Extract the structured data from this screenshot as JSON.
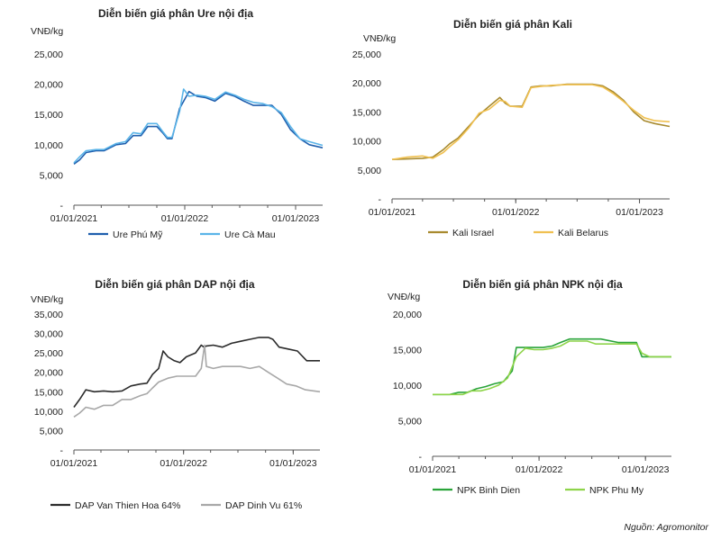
{
  "source": "Nguồn: Agromonitor",
  "chart_data": [
    {
      "type": "line",
      "title": "Diễn biến giá phân Ure nội địa",
      "ylabel": "VNĐ/kg",
      "ylim": [
        0,
        25000
      ],
      "yticks": [
        0,
        5000,
        10000,
        15000,
        20000,
        25000
      ],
      "ytick_labels": [
        "-",
        "5,000",
        "10,000",
        "15,000",
        "20,000",
        "25,000"
      ],
      "xlim": [
        "2021-01-01",
        "2023-03-31"
      ],
      "xticks": [
        "2021-01-01",
        "2022-01-01",
        "2023-01-01"
      ],
      "xtick_labels": [
        "01/01/2021",
        "01/01/2022",
        "01/01/2023"
      ],
      "legend": "bottom",
      "grid": false,
      "series": [
        {
          "name": "Ure Phú Mỹ",
          "color": "#1f5fae",
          "x": [
            "2021-01-01",
            "2021-01-20",
            "2021-02-10",
            "2021-03-15",
            "2021-04-10",
            "2021-05-20",
            "2021-06-20",
            "2021-07-15",
            "2021-08-10",
            "2021-09-01",
            "2021-10-01",
            "2021-10-20",
            "2021-11-05",
            "2021-11-20",
            "2021-12-15",
            "2022-01-15",
            "2022-02-10",
            "2022-03-10",
            "2022-04-10",
            "2022-05-15",
            "2022-06-15",
            "2022-07-15",
            "2022-08-15",
            "2022-09-15",
            "2022-10-15",
            "2022-11-15",
            "2022-12-15",
            "2023-01-15",
            "2023-02-15",
            "2023-03-31"
          ],
          "y": [
            6800,
            7500,
            8700,
            9000,
            9000,
            10000,
            10200,
            11500,
            11500,
            13000,
            13000,
            12000,
            11000,
            11000,
            16000,
            18800,
            18000,
            17800,
            17200,
            18500,
            18000,
            17200,
            16500,
            16500,
            16500,
            15000,
            12500,
            11000,
            10000,
            9500
          ]
        },
        {
          "name": "Ure Cà Mau",
          "color": "#5ab4e8",
          "x": [
            "2021-01-01",
            "2021-01-20",
            "2021-02-10",
            "2021-03-15",
            "2021-04-10",
            "2021-05-20",
            "2021-06-20",
            "2021-07-15",
            "2021-08-10",
            "2021-09-01",
            "2021-10-01",
            "2021-10-20",
            "2021-11-05",
            "2021-11-20",
            "2021-12-15",
            "2021-12-28",
            "2022-01-15",
            "2022-02-10",
            "2022-03-10",
            "2022-04-10",
            "2022-05-15",
            "2022-06-15",
            "2022-07-15",
            "2022-08-15",
            "2022-09-15",
            "2022-10-15",
            "2022-11-15",
            "2022-12-15",
            "2023-01-15",
            "2023-02-15",
            "2023-03-31"
          ],
          "y": [
            7000,
            8000,
            9000,
            9200,
            9200,
            10200,
            10500,
            12000,
            11800,
            13500,
            13500,
            12200,
            11200,
            11200,
            15500,
            19200,
            18000,
            18200,
            18000,
            17500,
            18700,
            18200,
            17500,
            17000,
            16800,
            16300,
            15300,
            13000,
            11000,
            10500,
            9900
          ]
        }
      ]
    },
    {
      "type": "line",
      "title": "Diễn biến giá phân Kali",
      "ylabel": "VNĐ/kg",
      "ylim": [
        0,
        25000
      ],
      "yticks": [
        0,
        5000,
        10000,
        15000,
        20000,
        25000
      ],
      "ytick_labels": [
        "-",
        "5,000",
        "10,000",
        "15,000",
        "20,000",
        "25,000"
      ],
      "xlim": [
        "2021-01-01",
        "2023-03-31"
      ],
      "xticks": [
        "2021-01-01",
        "2022-01-01",
        "2023-01-01"
      ],
      "xtick_labels": [
        "01/01/2021",
        "01/01/2022",
        "01/01/2023"
      ],
      "legend": "bottom",
      "grid": false,
      "series": [
        {
          "name": "Kali Israel",
          "color": "#a88a2e",
          "x": [
            "2021-01-01",
            "2021-02-15",
            "2021-04-01",
            "2021-05-01",
            "2021-06-01",
            "2021-06-20",
            "2021-07-15",
            "2021-08-15",
            "2021-09-15",
            "2021-10-15",
            "2021-11-15",
            "2021-12-01",
            "2021-12-15",
            "2022-01-20",
            "2022-02-15",
            "2022-03-15",
            "2022-04-15",
            "2022-06-01",
            "2022-07-15",
            "2022-08-15",
            "2022-09-15",
            "2022-10-15",
            "2022-11-15",
            "2022-12-15",
            "2023-01-15",
            "2023-02-15",
            "2023-03-31"
          ],
          "y": [
            6800,
            6900,
            7000,
            7200,
            8500,
            9500,
            10500,
            12500,
            14500,
            16000,
            17500,
            16500,
            16000,
            16000,
            19300,
            19500,
            19500,
            19800,
            19800,
            19800,
            19500,
            18500,
            17000,
            15000,
            13500,
            13000,
            12500
          ]
        },
        {
          "name": "Kali Belarus",
          "color": "#f0c050",
          "x": [
            "2021-01-01",
            "2021-02-15",
            "2021-04-01",
            "2021-05-01",
            "2021-06-01",
            "2021-06-20",
            "2021-07-15",
            "2021-08-15",
            "2021-09-15",
            "2021-10-15",
            "2021-11-15",
            "2021-12-01",
            "2021-12-15",
            "2022-01-20",
            "2022-02-15",
            "2022-03-15",
            "2022-04-15",
            "2022-06-01",
            "2022-07-15",
            "2022-08-15",
            "2022-09-15",
            "2022-10-15",
            "2022-11-15",
            "2022-12-15",
            "2023-01-15",
            "2023-02-15",
            "2023-03-31"
          ],
          "y": [
            6800,
            7200,
            7400,
            7000,
            8000,
            9000,
            10200,
            12200,
            14800,
            15500,
            17000,
            16800,
            16000,
            15800,
            19200,
            19400,
            19600,
            19700,
            19700,
            19700,
            19300,
            18200,
            16800,
            15300,
            14000,
            13500,
            13300
          ]
        }
      ]
    },
    {
      "type": "line",
      "title": "Diễn biến giá phân DAP nội địa",
      "ylabel": "VNĐ/kg",
      "ylim": [
        0,
        35000
      ],
      "yticks": [
        0,
        5000,
        10000,
        15000,
        20000,
        25000,
        30000,
        35000
      ],
      "ytick_labels": [
        "-",
        "5,000",
        "10,000",
        "15,000",
        "20,000",
        "25,000",
        "30,000",
        "35,000"
      ],
      "xlim": [
        "2021-01-01",
        "2023-03-31"
      ],
      "xticks": [
        "2021-01-01",
        "2022-01-01",
        "2023-01-01"
      ],
      "xtick_labels": [
        "01/01/2021",
        "01/01/2022",
        "01/01/2023"
      ],
      "legend": "bottom",
      "grid": false,
      "series": [
        {
          "name": "DAP Van Thien Hoa 64%",
          "color": "#2b2b2b",
          "x": [
            "2021-01-01",
            "2021-01-20",
            "2021-02-10",
            "2021-03-10",
            "2021-04-10",
            "2021-05-10",
            "2021-06-10",
            "2021-07-10",
            "2021-08-10",
            "2021-09-01",
            "2021-09-20",
            "2021-10-10",
            "2021-10-25",
            "2021-11-10",
            "2021-12-01",
            "2021-12-20",
            "2022-01-10",
            "2022-02-10",
            "2022-03-01",
            "2022-03-10",
            "2022-03-18",
            "2022-04-10",
            "2022-05-10",
            "2022-06-10",
            "2022-07-10",
            "2022-08-10",
            "2022-09-10",
            "2022-10-10",
            "2022-10-25",
            "2022-11-15",
            "2022-12-15",
            "2023-01-15",
            "2023-02-15",
            "2023-03-31"
          ],
          "y": [
            11000,
            13000,
            15500,
            15000,
            15200,
            15000,
            15200,
            16500,
            17000,
            17200,
            19500,
            21000,
            25500,
            24000,
            23000,
            22500,
            24000,
            25000,
            27000,
            26500,
            26800,
            27000,
            26500,
            27500,
            28000,
            28500,
            29000,
            29000,
            28500,
            26500,
            26000,
            25500,
            23000,
            23000
          ]
        },
        {
          "name": "DAP Dinh Vu 61%",
          "color": "#a8a8a8",
          "x": [
            "2021-01-01",
            "2021-01-20",
            "2021-02-10",
            "2021-03-10",
            "2021-04-10",
            "2021-05-10",
            "2021-06-10",
            "2021-07-10",
            "2021-08-10",
            "2021-09-01",
            "2021-09-20",
            "2021-10-10",
            "2021-11-10",
            "2021-12-10",
            "2022-01-10",
            "2022-02-10",
            "2022-03-01",
            "2022-03-12",
            "2022-03-18",
            "2022-04-10",
            "2022-05-10",
            "2022-06-10",
            "2022-07-10",
            "2022-08-10",
            "2022-09-10",
            "2022-10-10",
            "2022-11-10",
            "2022-12-10",
            "2023-01-10",
            "2023-02-10",
            "2023-03-31"
          ],
          "y": [
            8500,
            9500,
            11000,
            10500,
            11500,
            11500,
            13000,
            13000,
            14000,
            14500,
            16000,
            17500,
            18500,
            19000,
            19000,
            19000,
            21000,
            27000,
            21500,
            21000,
            21500,
            21500,
            21500,
            21000,
            21500,
            20000,
            18500,
            17000,
            16500,
            15500,
            15000
          ]
        }
      ]
    },
    {
      "type": "line",
      "title": "Diễn biến giá phân NPK nội địa",
      "ylabel": "VNĐ/kg",
      "ylim": [
        0,
        20000
      ],
      "yticks": [
        0,
        5000,
        10000,
        15000,
        20000
      ],
      "ytick_labels": [
        "-",
        "5,000",
        "10,000",
        "15,000",
        "20,000"
      ],
      "xlim": [
        "2021-01-01",
        "2023-03-31"
      ],
      "xticks": [
        "2021-01-01",
        "2022-01-01",
        "2023-01-01"
      ],
      "xtick_labels": [
        "01/01/2021",
        "01/01/2022",
        "01/01/2023"
      ],
      "legend": "bottom",
      "grid": false,
      "series": [
        {
          "name": "NPK Binh Dien",
          "color": "#2aa43a",
          "x": [
            "2021-01-01",
            "2021-03-01",
            "2021-04-01",
            "2021-05-01",
            "2021-06-01",
            "2021-07-01",
            "2021-08-01",
            "2021-09-01",
            "2021-10-01",
            "2021-10-15",
            "2021-11-15",
            "2021-12-15",
            "2022-01-15",
            "2022-02-15",
            "2022-03-15",
            "2022-04-15",
            "2022-05-15",
            "2022-06-15",
            "2022-08-01",
            "2022-10-01",
            "2022-12-01",
            "2022-12-20",
            "2023-01-15",
            "2023-03-31"
          ],
          "y": [
            8700,
            8700,
            9000,
            9000,
            9500,
            9800,
            10200,
            10500,
            12000,
            15300,
            15300,
            15300,
            15300,
            15500,
            16000,
            16500,
            16500,
            16500,
            16500,
            16000,
            16000,
            14000,
            14000,
            14000
          ]
        },
        {
          "name": "NPK Phu My",
          "color": "#8ed44a",
          "x": [
            "2021-01-01",
            "2021-03-15",
            "2021-04-15",
            "2021-05-15",
            "2021-06-15",
            "2021-07-15",
            "2021-08-15",
            "2021-09-15",
            "2021-10-15",
            "2021-11-15",
            "2021-12-15",
            "2022-01-15",
            "2022-02-15",
            "2022-03-15",
            "2022-04-15",
            "2022-05-15",
            "2022-06-15",
            "2022-07-15",
            "2022-08-15",
            "2022-10-01",
            "2022-12-01",
            "2022-12-20",
            "2023-01-15",
            "2023-03-31"
          ],
          "y": [
            8700,
            8700,
            8700,
            9200,
            9200,
            9500,
            10000,
            11000,
            14000,
            15200,
            15000,
            15000,
            15200,
            15500,
            16200,
            16200,
            16200,
            15800,
            15800,
            15800,
            15800,
            14500,
            14000,
            14000
          ]
        }
      ]
    }
  ]
}
